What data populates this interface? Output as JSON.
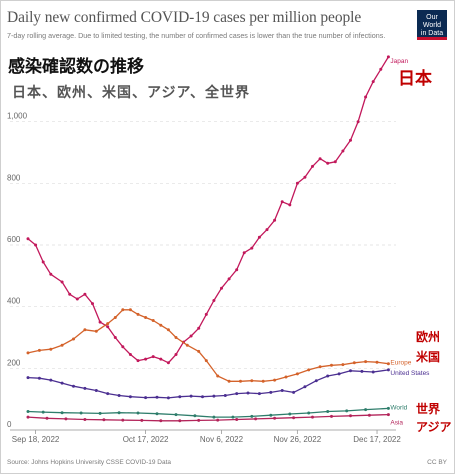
{
  "header": {
    "title": "Daily new confirmed COVID-19 cases per million people",
    "subtitle": "7-day rolling average. Due to limited testing, the number of confirmed cases is lower than the true number of infections.",
    "logo_line1": "Our World",
    "logo_line2": "in Data"
  },
  "overlay": {
    "title": "感染確認数の推移",
    "subtitle": "日本、欧州、米国、アジア、全世界",
    "label_japan": "日本",
    "label_europe": "欧州",
    "label_us": "米国",
    "label_world": "世界",
    "label_asia": "アジア"
  },
  "footer": {
    "source": "Source: Johns Hopkins University CSSE COVID-19 Data",
    "license": "CC BY"
  },
  "colors": {
    "japan": "#c2185b",
    "europe": "#d4622a",
    "us": "#4b2f91",
    "world": "#2e7d6b",
    "asia": "#b3245a",
    "overlay_red": "#c00000"
  },
  "chart_data": {
    "type": "line",
    "title": "Daily new confirmed COVID-19 cases per million people",
    "subtitle": "7-day rolling average. Due to limited testing, the number of confirmed cases is lower than the true number of infections.",
    "xlabel": "",
    "ylabel": "",
    "ylim": [
      0,
      1200
    ],
    "yticks": [
      "0",
      "200",
      "400",
      "600",
      "800",
      "1,000"
    ],
    "ytick_values": [
      0,
      200,
      400,
      600,
      800,
      1000
    ],
    "xticks": [
      "Sep 18, 2022",
      "Oct 17, 2022",
      "Nov 6, 2022",
      "Nov 26, 2022",
      "Dec 17, 2022"
    ],
    "xtick_values": [
      "2022-09-18",
      "2022-10-17",
      "2022-11-06",
      "2022-11-26",
      "2022-12-17"
    ],
    "xlim": [
      "2022-09-16",
      "2022-12-22"
    ],
    "grid": "horizontal dashed",
    "legend": "inline labels at line ends",
    "series": [
      {
        "name": "Japan",
        "key": "japan",
        "points": [
          [
            "2022-09-16",
            620
          ],
          [
            "2022-09-18",
            600
          ],
          [
            "2022-09-20",
            545
          ],
          [
            "2022-09-22",
            505
          ],
          [
            "2022-09-25",
            480
          ],
          [
            "2022-09-27",
            440
          ],
          [
            "2022-09-29",
            425
          ],
          [
            "2022-10-01",
            440
          ],
          [
            "2022-10-03",
            410
          ],
          [
            "2022-10-05",
            350
          ],
          [
            "2022-10-07",
            335
          ],
          [
            "2022-10-09",
            300
          ],
          [
            "2022-10-11",
            270
          ],
          [
            "2022-10-13",
            245
          ],
          [
            "2022-10-15",
            225
          ],
          [
            "2022-10-17",
            230
          ],
          [
            "2022-10-19",
            238
          ],
          [
            "2022-10-21",
            230
          ],
          [
            "2022-10-23",
            218
          ],
          [
            "2022-10-25",
            245
          ],
          [
            "2022-10-27",
            285
          ],
          [
            "2022-10-29",
            305
          ],
          [
            "2022-10-31",
            330
          ],
          [
            "2022-11-02",
            375
          ],
          [
            "2022-11-04",
            420
          ],
          [
            "2022-11-06",
            460
          ],
          [
            "2022-11-08",
            490
          ],
          [
            "2022-11-10",
            520
          ],
          [
            "2022-11-12",
            575
          ],
          [
            "2022-11-14",
            590
          ],
          [
            "2022-11-16",
            625
          ],
          [
            "2022-11-18",
            650
          ],
          [
            "2022-11-20",
            680
          ],
          [
            "2022-11-22",
            740
          ],
          [
            "2022-11-24",
            730
          ],
          [
            "2022-11-26",
            800
          ],
          [
            "2022-11-28",
            820
          ],
          [
            "2022-11-30",
            855
          ],
          [
            "2022-12-02",
            880
          ],
          [
            "2022-12-04",
            865
          ],
          [
            "2022-12-06",
            870
          ],
          [
            "2022-12-08",
            905
          ],
          [
            "2022-12-10",
            940
          ],
          [
            "2022-12-12",
            1000
          ],
          [
            "2022-12-14",
            1080
          ],
          [
            "2022-12-16",
            1130
          ],
          [
            "2022-12-18",
            1170
          ],
          [
            "2022-12-20",
            1210
          ]
        ]
      },
      {
        "name": "Europe",
        "key": "europe",
        "points": [
          [
            "2022-09-16",
            250
          ],
          [
            "2022-09-19",
            258
          ],
          [
            "2022-09-22",
            262
          ],
          [
            "2022-09-25",
            275
          ],
          [
            "2022-09-28",
            295
          ],
          [
            "2022-10-01",
            325
          ],
          [
            "2022-10-04",
            320
          ],
          [
            "2022-10-07",
            345
          ],
          [
            "2022-10-09",
            365
          ],
          [
            "2022-10-11",
            390
          ],
          [
            "2022-10-13",
            390
          ],
          [
            "2022-10-15",
            375
          ],
          [
            "2022-10-17",
            365
          ],
          [
            "2022-10-19",
            355
          ],
          [
            "2022-10-21",
            340
          ],
          [
            "2022-10-23",
            325
          ],
          [
            "2022-10-25",
            300
          ],
          [
            "2022-10-28",
            275
          ],
          [
            "2022-10-31",
            255
          ],
          [
            "2022-11-02",
            225
          ],
          [
            "2022-11-05",
            175
          ],
          [
            "2022-11-08",
            158
          ],
          [
            "2022-11-11",
            158
          ],
          [
            "2022-11-14",
            160
          ],
          [
            "2022-11-17",
            158
          ],
          [
            "2022-11-20",
            162
          ],
          [
            "2022-11-23",
            172
          ],
          [
            "2022-11-26",
            182
          ],
          [
            "2022-11-29",
            195
          ],
          [
            "2022-12-02",
            205
          ],
          [
            "2022-12-05",
            210
          ],
          [
            "2022-12-08",
            212
          ],
          [
            "2022-12-11",
            218
          ],
          [
            "2022-12-14",
            222
          ],
          [
            "2022-12-17",
            220
          ],
          [
            "2022-12-20",
            215
          ]
        ]
      },
      {
        "name": "United States",
        "key": "us",
        "points": [
          [
            "2022-09-16",
            170
          ],
          [
            "2022-09-19",
            168
          ],
          [
            "2022-09-22",
            162
          ],
          [
            "2022-09-25",
            152
          ],
          [
            "2022-09-28",
            142
          ],
          [
            "2022-10-01",
            135
          ],
          [
            "2022-10-04",
            128
          ],
          [
            "2022-10-07",
            118
          ],
          [
            "2022-10-10",
            112
          ],
          [
            "2022-10-13",
            108
          ],
          [
            "2022-10-17",
            105
          ],
          [
            "2022-10-20",
            106
          ],
          [
            "2022-10-23",
            104
          ],
          [
            "2022-10-26",
            108
          ],
          [
            "2022-10-29",
            110
          ],
          [
            "2022-11-01",
            108
          ],
          [
            "2022-11-04",
            110
          ],
          [
            "2022-11-07",
            112
          ],
          [
            "2022-11-10",
            118
          ],
          [
            "2022-11-13",
            120
          ],
          [
            "2022-11-16",
            118
          ],
          [
            "2022-11-19",
            122
          ],
          [
            "2022-11-22",
            128
          ],
          [
            "2022-11-25",
            122
          ],
          [
            "2022-11-28",
            140
          ],
          [
            "2022-12-01",
            160
          ],
          [
            "2022-12-04",
            175
          ],
          [
            "2022-12-07",
            182
          ],
          [
            "2022-12-10",
            192
          ],
          [
            "2022-12-13",
            190
          ],
          [
            "2022-12-16",
            188
          ],
          [
            "2022-12-20",
            195
          ]
        ]
      },
      {
        "name": "World",
        "key": "world",
        "points": [
          [
            "2022-09-16",
            60
          ],
          [
            "2022-09-20",
            58
          ],
          [
            "2022-09-25",
            56
          ],
          [
            "2022-09-30",
            55
          ],
          [
            "2022-10-05",
            54
          ],
          [
            "2022-10-10",
            56
          ],
          [
            "2022-10-15",
            55
          ],
          [
            "2022-10-20",
            53
          ],
          [
            "2022-10-25",
            50
          ],
          [
            "2022-10-30",
            46
          ],
          [
            "2022-11-04",
            42
          ],
          [
            "2022-11-09",
            42
          ],
          [
            "2022-11-14",
            44
          ],
          [
            "2022-11-19",
            48
          ],
          [
            "2022-11-24",
            52
          ],
          [
            "2022-11-29",
            55
          ],
          [
            "2022-12-04",
            60
          ],
          [
            "2022-12-09",
            62
          ],
          [
            "2022-12-14",
            66
          ],
          [
            "2022-12-20",
            70
          ]
        ]
      },
      {
        "name": "Asia",
        "key": "asia",
        "points": [
          [
            "2022-09-16",
            42
          ],
          [
            "2022-09-21",
            38
          ],
          [
            "2022-09-26",
            36
          ],
          [
            "2022-10-01",
            34
          ],
          [
            "2022-10-06",
            33
          ],
          [
            "2022-10-11",
            32
          ],
          [
            "2022-10-16",
            31
          ],
          [
            "2022-10-21",
            30
          ],
          [
            "2022-10-26",
            30
          ],
          [
            "2022-10-31",
            31
          ],
          [
            "2022-11-05",
            32
          ],
          [
            "2022-11-10",
            34
          ],
          [
            "2022-11-15",
            36
          ],
          [
            "2022-11-20",
            38
          ],
          [
            "2022-11-25",
            40
          ],
          [
            "2022-11-30",
            42
          ],
          [
            "2022-12-05",
            44
          ],
          [
            "2022-12-10",
            46
          ],
          [
            "2022-12-15",
            48
          ],
          [
            "2022-12-20",
            50
          ]
        ]
      }
    ]
  }
}
